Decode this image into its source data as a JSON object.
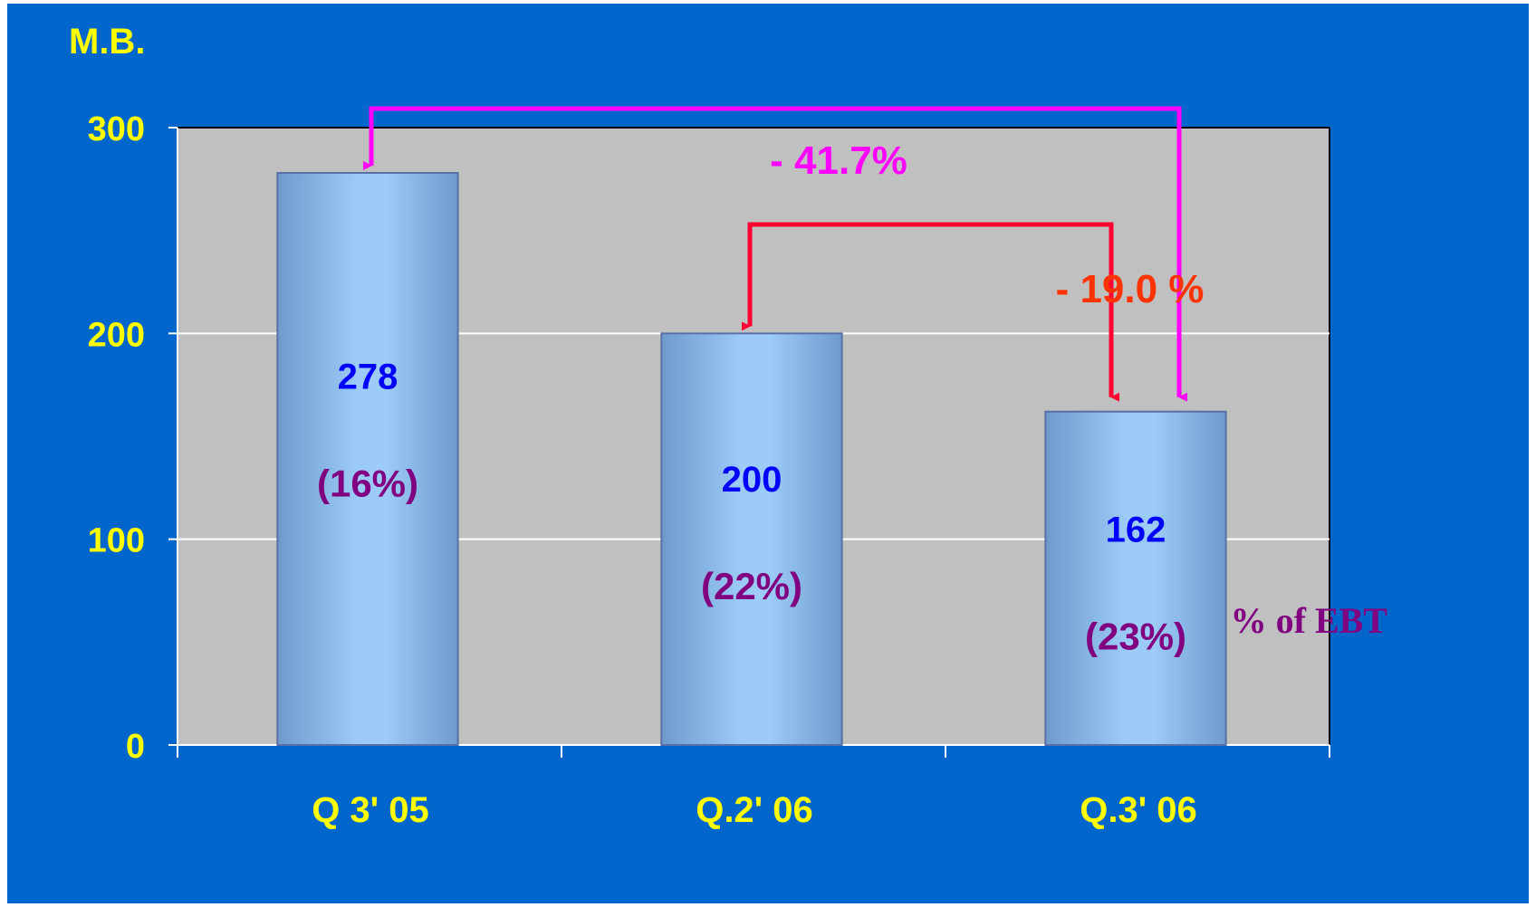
{
  "chart_data": {
    "type": "bar",
    "ylabel": "M.B.",
    "ylim": [
      0,
      300
    ],
    "yticks": [
      "0",
      "100",
      "200",
      "300"
    ],
    "grid": true,
    "categories": [
      "Q 3' 05",
      "Q.2' 06",
      "Q.3' 06"
    ],
    "values": [
      278,
      200,
      162
    ],
    "value_labels": [
      "278",
      "200",
      "162"
    ],
    "ebt_labels": [
      "(16%)",
      "(22%)",
      "(23%)"
    ],
    "ebt_note": "% of EBT",
    "annotations": [
      {
        "text": "- 41.7%",
        "from": "Q 3' 05",
        "to": "Q.3' 06",
        "color": "#FF00FF"
      },
      {
        "text": "- 19.0 %",
        "from": "Q.2' 06",
        "to": "Q.3' 06",
        "color": "#FF0033",
        "text_color": "#FF3300"
      }
    ]
  },
  "colors": {
    "background": "#0066CC",
    "plot_area": "#C0C0C0",
    "axis_text": "#FFFF00",
    "value_text": "#0000FF",
    "ebt_text": "#800080"
  }
}
